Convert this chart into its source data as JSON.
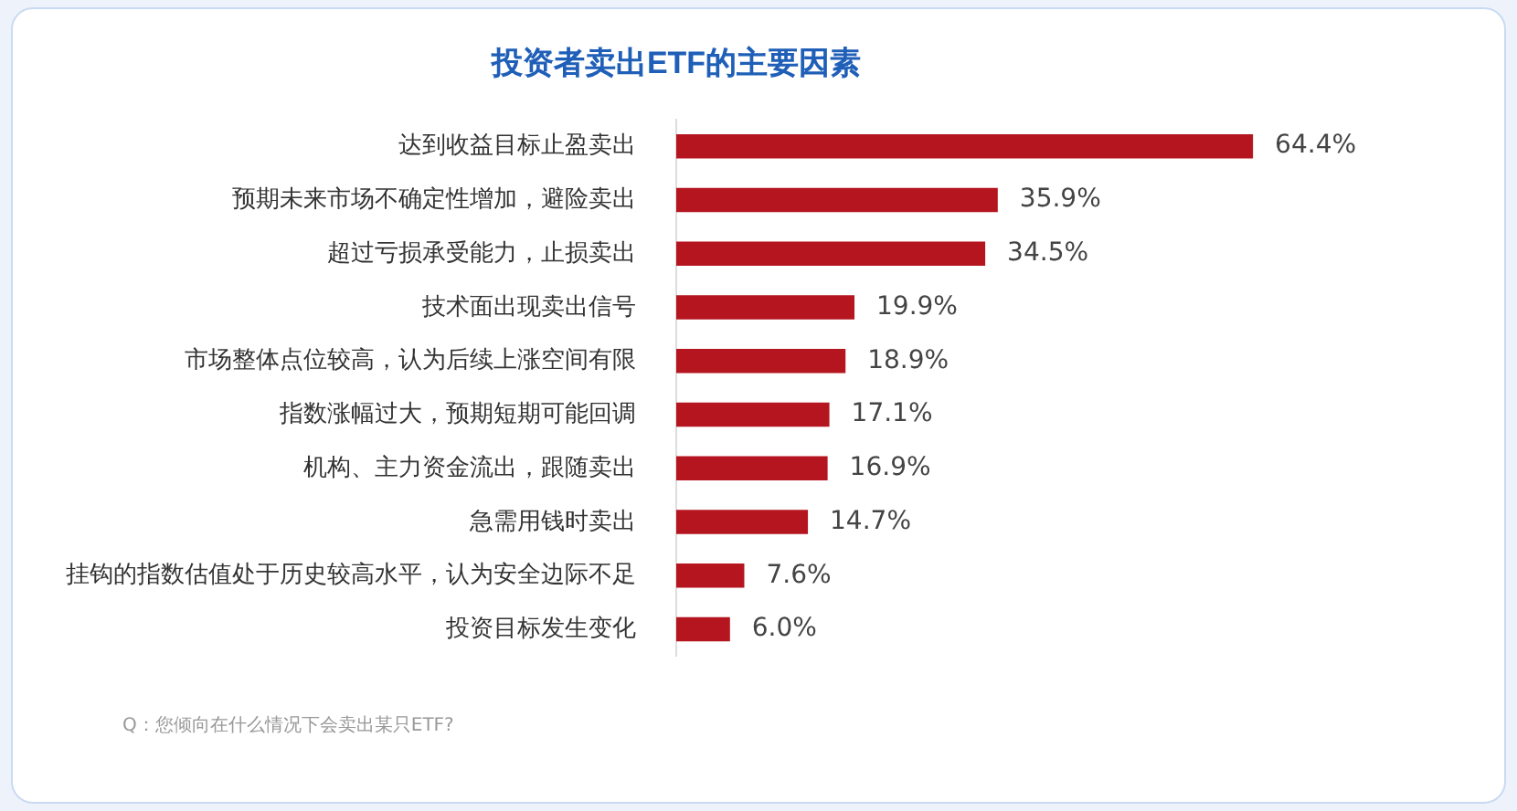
{
  "chart_data": {
    "type": "bar",
    "orientation": "horizontal",
    "title": "投资者卖出ETF的主要因素",
    "categories": [
      "达到收益目标止盈卖出",
      "预期未来市场不确定性增加，避险卖出",
      "超过亏损承受能力，止损卖出",
      "技术面出现卖出信号",
      "市场整体点位较高，认为后续上涨空间有限",
      "指数涨幅过大，预期短期可能回调",
      "机构、主力资金流出，跟随卖出",
      "急需用钱时卖出",
      "挂钩的指数估值处于历史较高水平，认为安全边际不足",
      "投资目标发生变化"
    ],
    "values": [
      64.4,
      35.9,
      34.5,
      19.9,
      18.9,
      17.1,
      16.9,
      14.7,
      7.6,
      6.0
    ],
    "value_labels": [
      "64.4%",
      "35.9%",
      "34.5%",
      "19.9%",
      "18.9%",
      "17.1%",
      "16.9%",
      "14.7%",
      "7.6%",
      "6.0%"
    ],
    "color": "#b5151f",
    "legend": false,
    "tick_labels": "y",
    "annotations": [
      "Q：您倾向在什么情况下会卖出某只ETF?"
    ]
  }
}
